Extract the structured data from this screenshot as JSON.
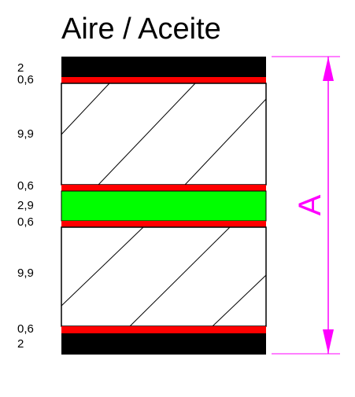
{
  "title": "Aire / Aceite",
  "layers": [
    {
      "thickness_label": "2",
      "material": "steel",
      "color": "#000000"
    },
    {
      "thickness_label": "0,6",
      "material": "red-layer",
      "color": "#ff0000"
    },
    {
      "thickness_label": "9,9",
      "material": "hatched-insulation",
      "color": "#ffffff"
    },
    {
      "thickness_label": "0,6",
      "material": "red-layer",
      "color": "#ff0000"
    },
    {
      "thickness_label": "2,9",
      "material": "green-layer",
      "color": "#00ff00"
    },
    {
      "thickness_label": "0,6",
      "material": "red-layer",
      "color": "#ff0000"
    },
    {
      "thickness_label": "9,9",
      "material": "hatched-insulation",
      "color": "#ffffff"
    },
    {
      "thickness_label": "0,6",
      "material": "red-layer",
      "color": "#ff0000"
    },
    {
      "thickness_label": "2",
      "material": "steel",
      "color": "#000000"
    }
  ],
  "dimension": {
    "label": "A",
    "color": "#ff00ff"
  }
}
